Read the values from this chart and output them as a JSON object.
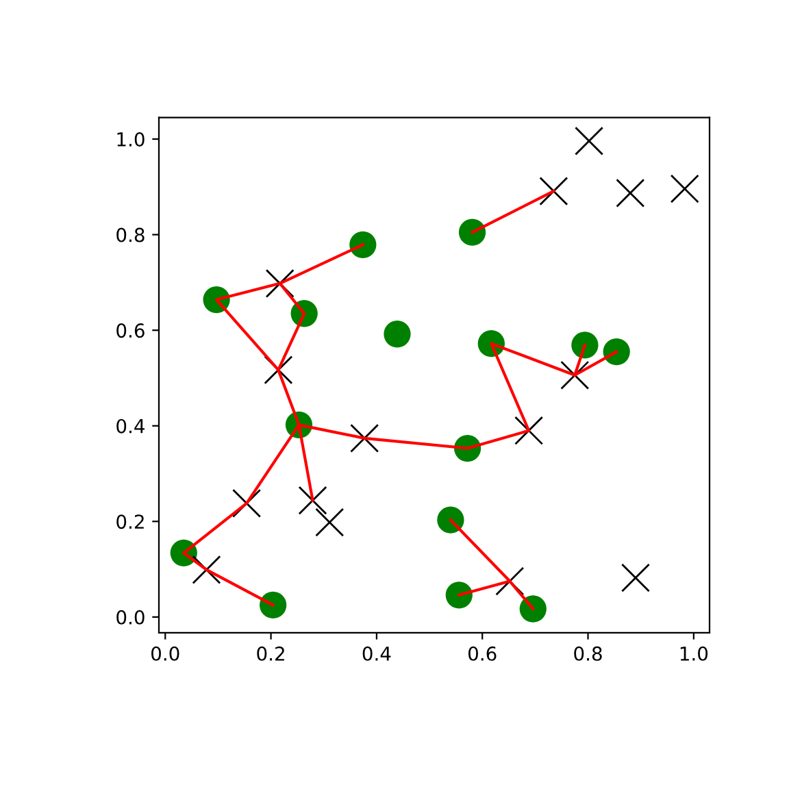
{
  "chart_data": {
    "type": "scatter",
    "xlim": [
      -0.012,
      1.03
    ],
    "ylim": [
      -0.033,
      1.045
    ],
    "xticks": [
      {
        "value": 0,
        "label": "0.0"
      },
      0.2,
      0.4,
      0.6,
      0.8,
      {
        "value": 1,
        "label": "1.0"
      }
    ],
    "yticks": [
      {
        "value": 0,
        "label": "0.0"
      },
      0.2,
      0.4,
      0.6,
      0.8,
      {
        "value": 1,
        "label": "1.0"
      }
    ],
    "series": [
      {
        "type": "scatter",
        "color": "#008000",
        "marker": "circle",
        "x": [
          0.374,
          0.097,
          0.263,
          0.439,
          0.581,
          0.617,
          0.794,
          0.854,
          0.253,
          0.572,
          0.035,
          0.204,
          0.54,
          0.556,
          0.696
        ],
        "values": [
          0.779,
          0.664,
          0.635,
          0.592,
          0.805,
          0.572,
          0.569,
          0.555,
          0.402,
          0.353,
          0.134,
          0.025,
          0.203,
          0.046,
          0.017
        ]
      },
      {
        "type": "scatter",
        "color": "#000000",
        "marker": "cross",
        "x": [
          0.217,
          0.214,
          0.377,
          0.279,
          0.154,
          0.078,
          0.688,
          0.775,
          0.652,
          0.735,
          0.802,
          0.88,
          0.983,
          0.311,
          0.89
        ],
        "values": [
          0.698,
          0.517,
          0.374,
          0.244,
          0.238,
          0.099,
          0.39,
          0.506,
          0.075,
          0.891,
          0.996,
          0.887,
          0.896,
          0.198,
          0.082
        ]
      },
      {
        "type": "line",
        "color": "#ff0000",
        "line_style": "solid",
        "x": [
          0.374,
          0.217,
          0.097,
          0.214,
          0.263,
          0.217
        ],
        "values": [
          0.779,
          0.698,
          0.664,
          0.517,
          0.635,
          0.698
        ]
      },
      {
        "type": "line",
        "color": "#ff0000",
        "line_style": "solid",
        "x": [
          0.214,
          0.253,
          0.377,
          0.572,
          0.688,
          0.617,
          0.775,
          0.794
        ],
        "values": [
          0.517,
          0.402,
          0.374,
          0.353,
          0.39,
          0.572,
          0.506,
          0.569
        ]
      },
      {
        "type": "line",
        "color": "#ff0000",
        "line_style": "solid",
        "x": [
          0.775,
          0.854
        ],
        "values": [
          0.506,
          0.555
        ]
      },
      {
        "type": "line",
        "color": "#ff0000",
        "line_style": "solid",
        "x": [
          0.253,
          0.279
        ],
        "values": [
          0.402,
          0.244
        ]
      },
      {
        "type": "line",
        "color": "#ff0000",
        "line_style": "solid",
        "x": [
          0.253,
          0.154,
          0.035,
          0.078,
          0.204
        ],
        "values": [
          0.402,
          0.238,
          0.134,
          0.099,
          0.025
        ]
      },
      {
        "type": "line",
        "color": "#ff0000",
        "line_style": "solid",
        "x": [
          0.581,
          0.735
        ],
        "values": [
          0.805,
          0.891
        ]
      },
      {
        "type": "line",
        "color": "#ff0000",
        "line_style": "solid",
        "x": [
          0.54,
          0.652,
          0.696
        ],
        "values": [
          0.203,
          0.075,
          0.017
        ]
      },
      {
        "type": "line",
        "color": "#ff0000",
        "line_style": "solid",
        "x": [
          0.556,
          0.652
        ],
        "values": [
          0.046,
          0.075
        ]
      }
    ]
  }
}
